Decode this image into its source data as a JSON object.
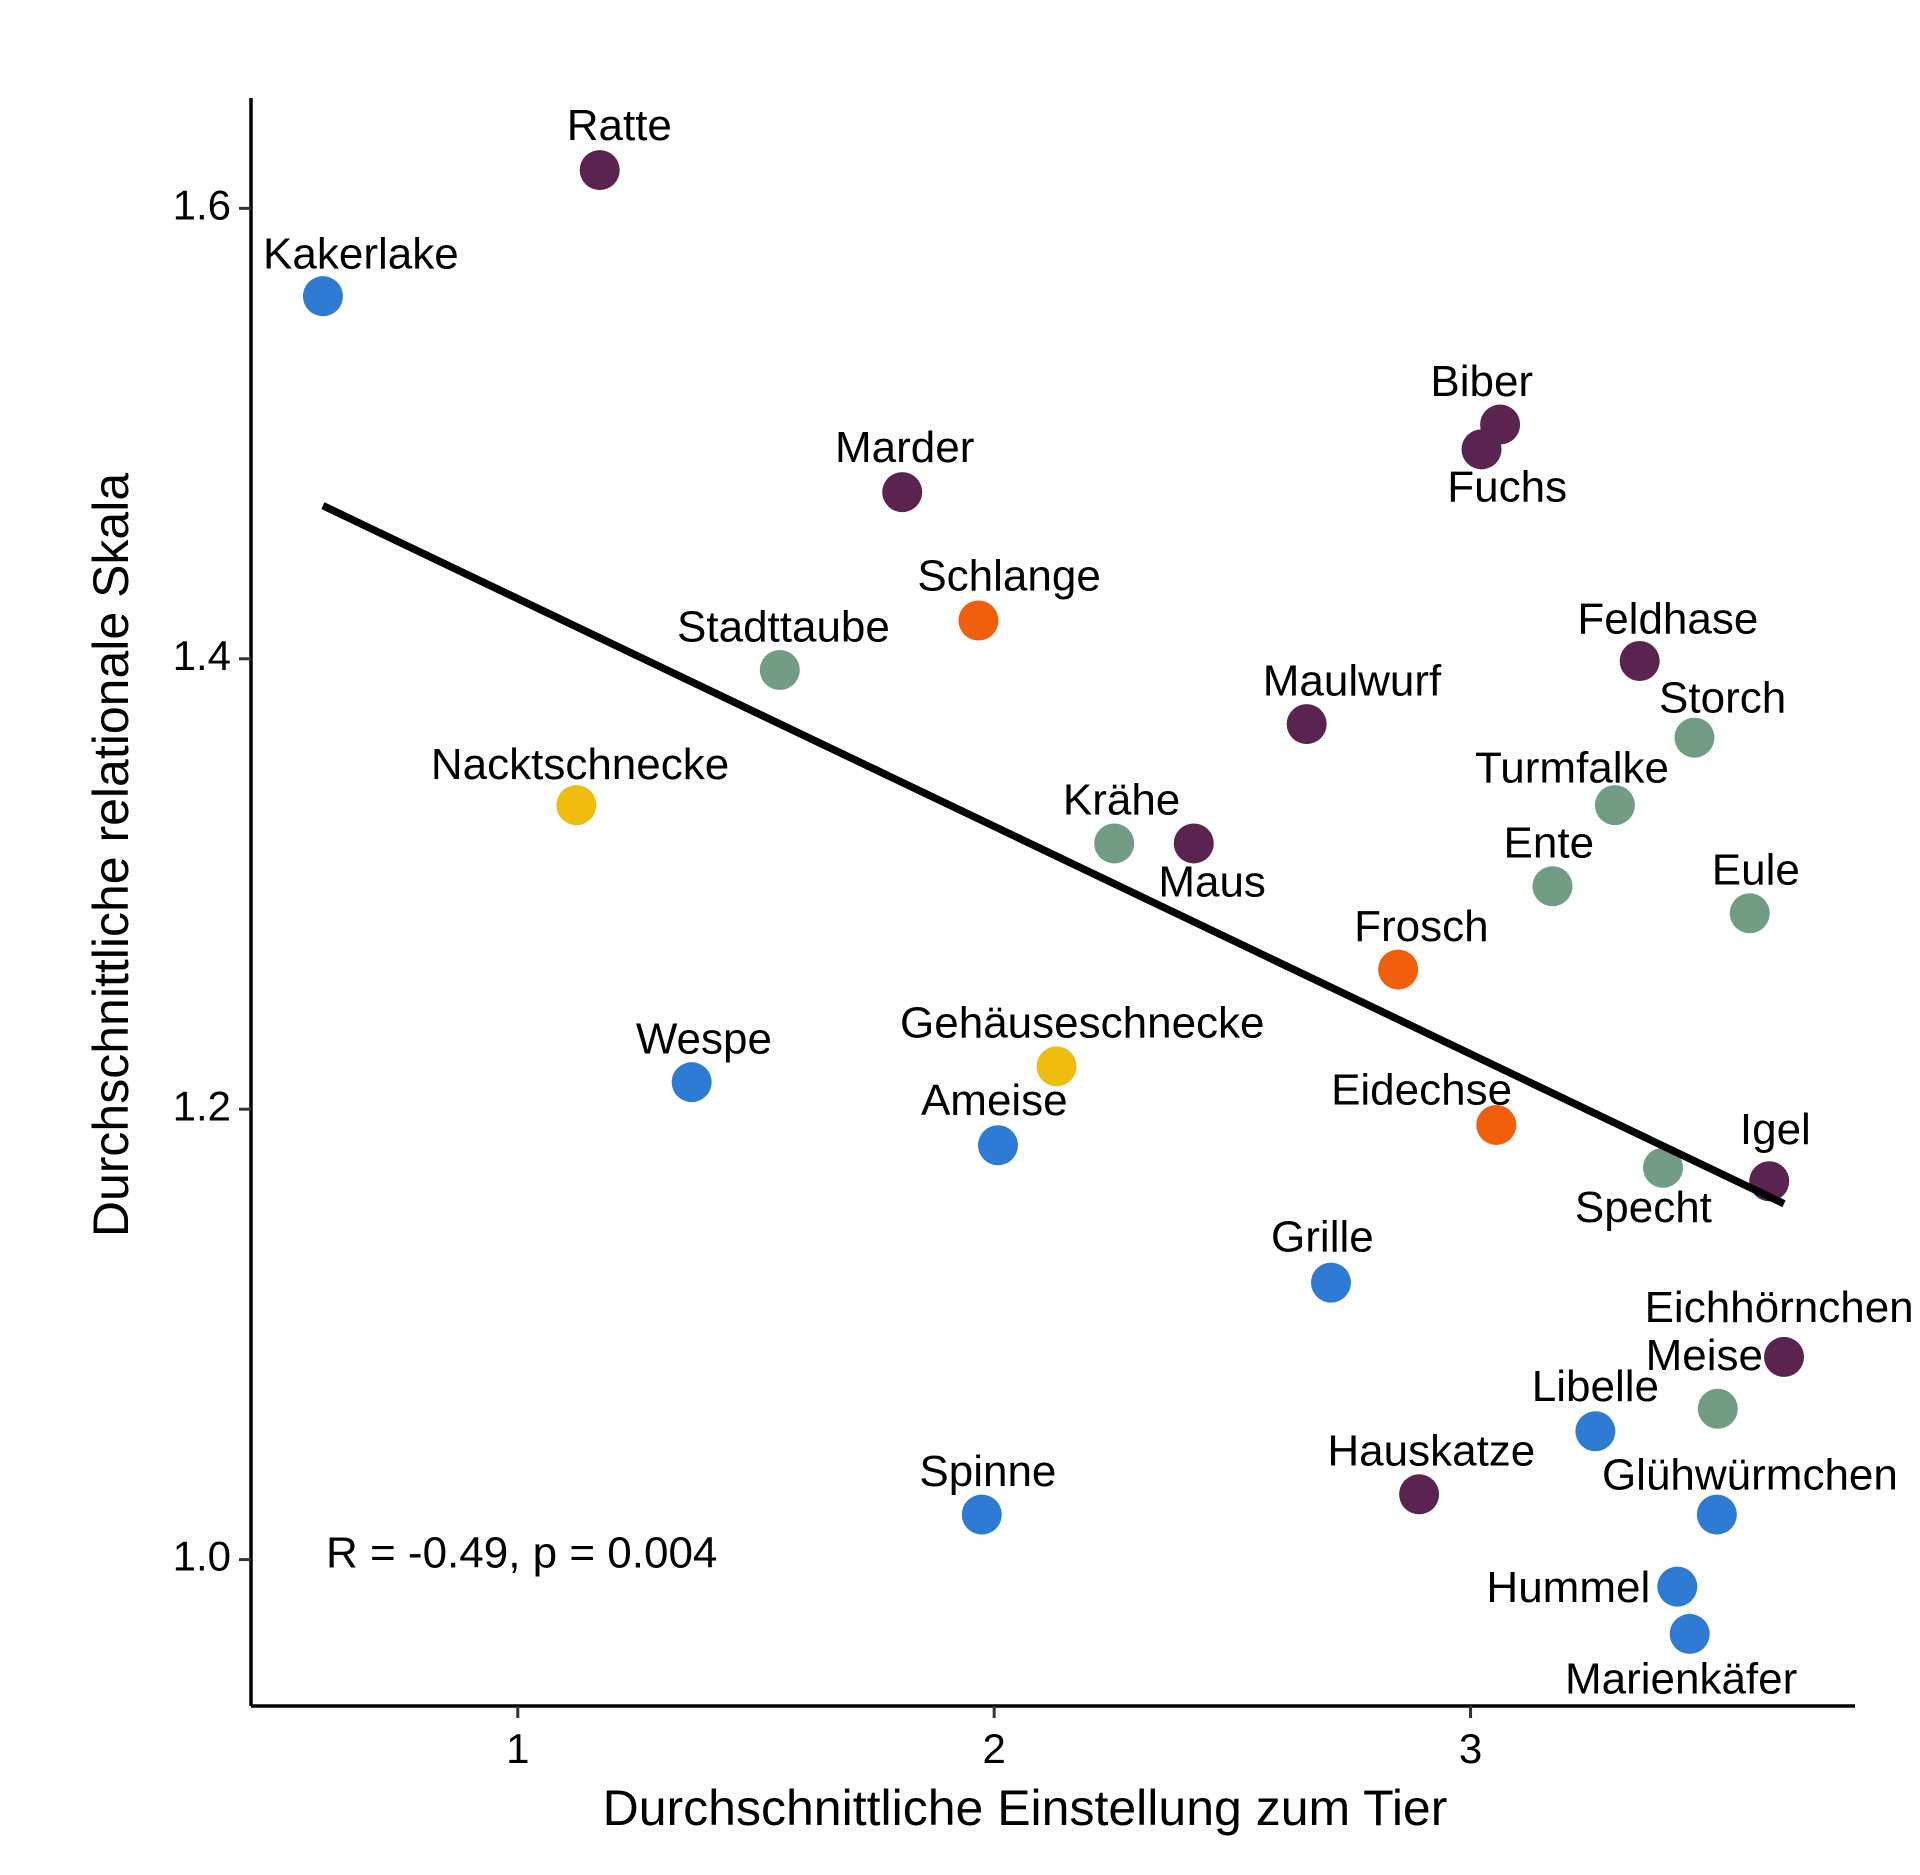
{
  "chart_data": {
    "type": "scatter",
    "x_label": "Durchschnittliche Einstellung zum Tier",
    "y_label": "Durchschnittliche relationale Skala",
    "annotation": "R = -0.49, p = 0.004",
    "xlim": [
      0.44,
      3.807
    ],
    "ylim": [
      0.935,
      1.649
    ],
    "xticks": [
      1,
      2,
      3
    ],
    "yticks": [
      {
        "value": 1,
        "label": "1.0"
      },
      1.2,
      1.4,
      1.6
    ],
    "series": [
      {
        "labels": [
          "Ratte",
          "Kakerlake",
          "Marder",
          "Biber",
          "Fuchs",
          "Schlange",
          "Stadttaube",
          "Feldhase",
          "Maulwurf",
          "Storch",
          "Nacktschnecke",
          "Turmfalke",
          "Krähe",
          "Maus",
          "Ente",
          "Eule",
          "Frosch",
          "Wespe",
          "Gehäuseschnecke",
          "Ameise",
          "Eidechse",
          "Specht",
          "Igel",
          "Grille",
          "Eichhörnchen",
          "Meise",
          "Libelle",
          "Hauskatze",
          "Spinne",
          "Glühwürmchen",
          "Hummel",
          "Marienkäfer"
        ],
        "x": [
          1.172,
          0.591,
          1.807,
          3.062,
          3.023,
          1.967,
          1.55,
          3.355,
          2.656,
          3.47,
          1.123,
          3.303,
          2.252,
          2.419,
          3.172,
          3.586,
          2.848,
          1.365,
          2.131,
          2.008,
          3.054,
          3.404,
          3.627,
          2.707,
          3.658,
          3.519,
          3.262,
          2.892,
          1.974,
          3.517,
          3.434,
          3.46
        ],
        "values": [
          1.617,
          1.561,
          1.474,
          1.504,
          1.493,
          1.417,
          1.395,
          1.399,
          1.371,
          1.365,
          1.335,
          1.335,
          1.318,
          1.318,
          1.299,
          1.287,
          1.262,
          1.212,
          1.219,
          1.184,
          1.193,
          1.174,
          1.168,
          1.123,
          1.09,
          1.067,
          1.057,
          1.029,
          1.02,
          1.02,
          0.988,
          0.967
        ],
        "colors": [
          "#5b2450",
          "#2e7bd4",
          "#5b2450",
          "#5b2450",
          "#5b2450",
          "#f25f0c",
          "#729c84",
          "#5b2450",
          "#5b2450",
          "#729c84",
          "#eebd10",
          "#729c84",
          "#729c84",
          "#5b2450",
          "#729c84",
          "#729c84",
          "#f25f0c",
          "#2e7bd4",
          "#eebd10",
          "#2e7bd4",
          "#f25f0c",
          "#729c84",
          "#5b2450",
          "#2e7bd4",
          "#5b2450",
          "#729c84",
          "#2e7bd4",
          "#5b2450",
          "#2e7bd4",
          "#2e7bd4",
          "#2e7bd4",
          "#2e7bd4"
        ]
      }
    ],
    "trend_line": {
      "x": [
        0.591,
        3.658
      ],
      "values": [
        1.468,
        1.158
      ],
      "color": "#000000"
    }
  }
}
